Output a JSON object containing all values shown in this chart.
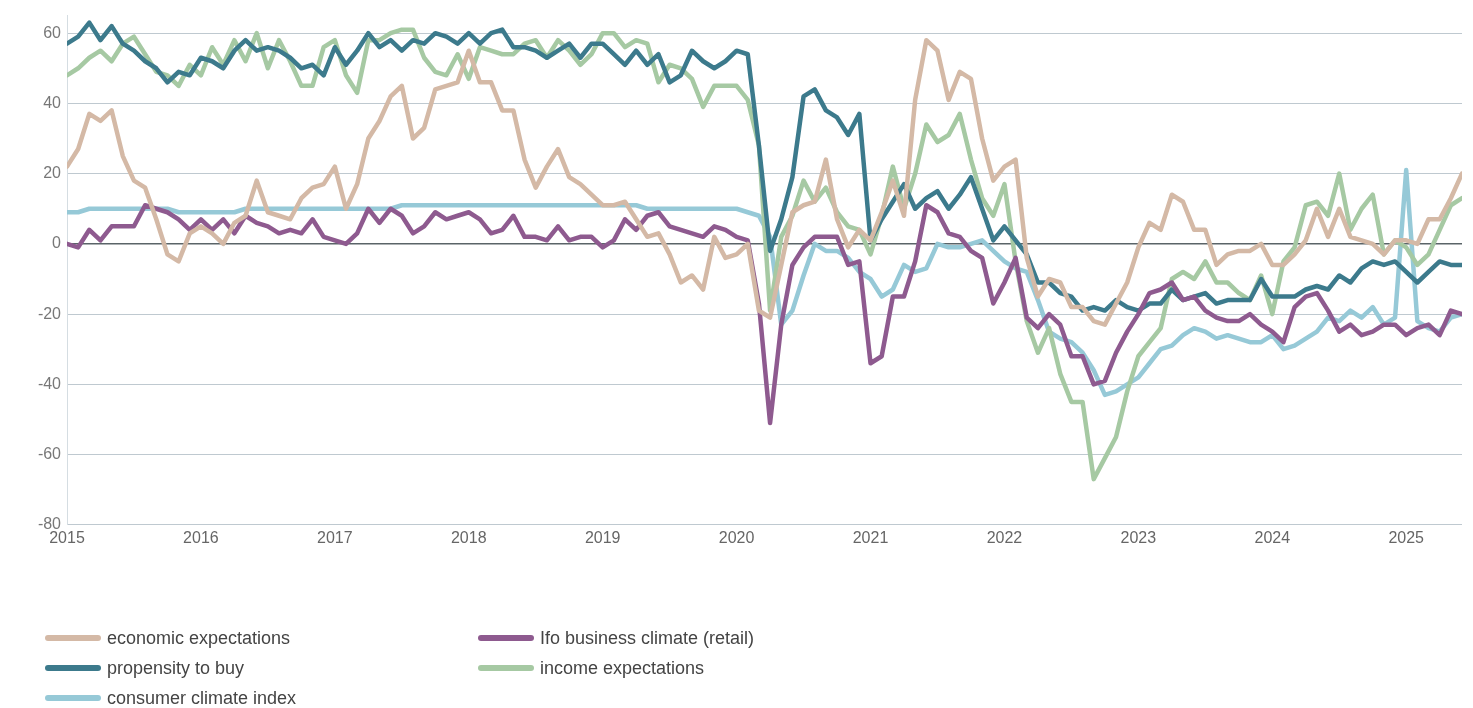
{
  "chart_data": {
    "type": "line",
    "x": [
      "2015-01",
      "2015-02",
      "2015-03",
      "2015-04",
      "2015-05",
      "2015-06",
      "2015-07",
      "2015-08",
      "2015-09",
      "2015-10",
      "2015-11",
      "2015-12",
      "2016-01",
      "2016-02",
      "2016-03",
      "2016-04",
      "2016-05",
      "2016-06",
      "2016-07",
      "2016-08",
      "2016-09",
      "2016-10",
      "2016-11",
      "2016-12",
      "2017-01",
      "2017-02",
      "2017-03",
      "2017-04",
      "2017-05",
      "2017-06",
      "2017-07",
      "2017-08",
      "2017-09",
      "2017-10",
      "2017-11",
      "2017-12",
      "2018-01",
      "2018-02",
      "2018-03",
      "2018-04",
      "2018-05",
      "2018-06",
      "2018-07",
      "2018-08",
      "2018-09",
      "2018-10",
      "2018-11",
      "2018-12",
      "2019-01",
      "2019-02",
      "2019-03",
      "2019-04",
      "2019-05",
      "2019-06",
      "2019-07",
      "2019-08",
      "2019-09",
      "2019-10",
      "2019-11",
      "2019-12",
      "2020-01",
      "2020-02",
      "2020-03",
      "2020-04",
      "2020-05",
      "2020-06",
      "2020-07",
      "2020-08",
      "2020-09",
      "2020-10",
      "2020-11",
      "2020-12",
      "2021-01",
      "2021-02",
      "2021-03",
      "2021-04",
      "2021-05",
      "2021-06",
      "2021-07",
      "2021-08",
      "2021-09",
      "2021-10",
      "2021-11",
      "2021-12",
      "2022-01",
      "2022-02",
      "2022-03",
      "2022-04",
      "2022-05",
      "2022-06",
      "2022-07",
      "2022-08",
      "2022-09",
      "2022-10",
      "2022-11",
      "2022-12",
      "2023-01",
      "2023-02",
      "2023-03",
      "2023-04",
      "2023-05",
      "2023-06",
      "2023-07",
      "2023-08",
      "2023-09",
      "2023-10",
      "2023-11",
      "2023-12",
      "2024-01",
      "2024-02",
      "2024-03",
      "2024-04",
      "2024-05",
      "2024-06",
      "2024-07",
      "2024-08",
      "2024-09",
      "2024-10",
      "2024-11",
      "2024-12",
      "2025-01",
      "2025-02",
      "2025-03",
      "2025-04",
      "2025-05",
      "2025-06"
    ],
    "series": [
      {
        "name": "economic expectations",
        "color": "#d4b9a6",
        "values": [
          22,
          27,
          37,
          35,
          38,
          25,
          18,
          16,
          7,
          -3,
          -5,
          3,
          5,
          3,
          0,
          6,
          8,
          18,
          9,
          8,
          7,
          13,
          16,
          17,
          22,
          10,
          17,
          30,
          35,
          42,
          45,
          30,
          33,
          44,
          45,
          46,
          55,
          46,
          46,
          38,
          38,
          24,
          16,
          22,
          27,
          19,
          17,
          14,
          11,
          11,
          12,
          7,
          2,
          3,
          -3,
          -11,
          -9,
          -13,
          2,
          -4,
          -3,
          0,
          -19,
          -21,
          -6,
          9,
          11,
          12,
          24,
          7,
          -1,
          4,
          1,
          9,
          18,
          8,
          41,
          58,
          55,
          41,
          49,
          47,
          30,
          18,
          22,
          24,
          -4,
          -15,
          -10,
          -11,
          -18,
          -18,
          -22,
          -23,
          -17,
          -11,
          -1,
          6,
          4,
          14,
          12,
          4,
          4,
          -6,
          -3,
          -2,
          -2,
          0,
          -6,
          -6,
          -3,
          1,
          10,
          2,
          10,
          2,
          1,
          0,
          -3,
          1,
          1,
          0,
          7,
          7,
          13,
          20
        ]
      },
      {
        "name": "Ifo business climate (retail)",
        "color": "#8e5a8f",
        "values": [
          0,
          -1,
          4,
          1,
          5,
          5,
          5,
          11,
          10,
          9,
          7,
          4,
          7,
          4,
          7,
          3,
          8,
          6,
          5,
          3,
          4,
          3,
          7,
          2,
          1,
          0,
          3,
          10,
          6,
          10,
          8,
          3,
          5,
          9,
          7,
          8,
          9,
          7,
          3,
          4,
          8,
          2,
          2,
          1,
          5,
          1,
          2,
          2,
          -1,
          1,
          7,
          4,
          8,
          9,
          5,
          4,
          3,
          2,
          5,
          4,
          2,
          1,
          -17,
          -51,
          -23,
          -6,
          -1,
          2,
          2,
          2,
          -6,
          -5,
          -34,
          -32,
          -15,
          -15,
          -5,
          11,
          9,
          3,
          2,
          -2,
          -4,
          -17,
          -11,
          -4,
          -21,
          -24,
          -20,
          -23,
          -32,
          -32,
          -40,
          -39,
          -31,
          -25,
          -20,
          -14,
          -13,
          -11,
          -16,
          -15,
          -19,
          -21,
          -22,
          -22,
          -20,
          -23,
          -25,
          -28,
          -18,
          -15,
          -14,
          -19,
          -25,
          -23,
          -26,
          -25,
          -23,
          -23,
          -26,
          -24,
          -23,
          -26,
          -19,
          -20
        ]
      },
      {
        "name": "propensity to buy",
        "color": "#3c7a8c",
        "values": [
          57,
          59,
          63,
          58,
          62,
          57,
          55,
          52,
          50,
          46,
          49,
          48,
          53,
          52,
          50,
          55,
          58,
          55,
          56,
          55,
          53,
          50,
          51,
          48,
          56,
          51,
          55,
          60,
          56,
          58,
          55,
          58,
          57,
          60,
          59,
          57,
          60,
          57,
          60,
          61,
          56,
          56,
          55,
          53,
          55,
          57,
          53,
          57,
          57,
          54,
          51,
          55,
          51,
          54,
          46,
          48,
          55,
          52,
          50,
          52,
          55,
          54,
          28,
          -2,
          7,
          19,
          42,
          44,
          38,
          36,
          31,
          37,
          1,
          7,
          12,
          17,
          10,
          13,
          15,
          10,
          14,
          19,
          10,
          1,
          5,
          1,
          -3,
          -11,
          -11,
          -14,
          -15,
          -19,
          -18,
          -19,
          -16,
          -18,
          -19,
          -17,
          -17,
          -13,
          -16,
          -15,
          -14,
          -17,
          -16,
          -16,
          -16,
          -10,
          -15,
          -15,
          -15,
          -13,
          -12,
          -13,
          -9,
          -11,
          -7,
          -5,
          -6,
          -5,
          -8,
          -11,
          -8,
          -5,
          -6,
          -6
        ]
      },
      {
        "name": "income expectations",
        "color": "#a6c9a3",
        "values": [
          48,
          50,
          53,
          55,
          52,
          57,
          59,
          54,
          49,
          48,
          45,
          51,
          48,
          56,
          51,
          58,
          52,
          60,
          50,
          58,
          52,
          45,
          45,
          56,
          58,
          48,
          43,
          58,
          58,
          60,
          61,
          61,
          53,
          49,
          48,
          54,
          47,
          56,
          55,
          54,
          54,
          57,
          58,
          53,
          58,
          55,
          51,
          54,
          60,
          60,
          56,
          58,
          57,
          46,
          51,
          50,
          47,
          39,
          45,
          45,
          45,
          41,
          28,
          -19,
          2,
          8,
          18,
          12,
          16,
          9,
          5,
          4,
          -3,
          8,
          22,
          10,
          20,
          34,
          29,
          31,
          37,
          24,
          13,
          8,
          17,
          -5,
          -22,
          -31,
          -24,
          -37,
          -45,
          -45,
          -67,
          -61,
          -55,
          -42,
          -32,
          -28,
          -24,
          -10,
          -8,
          -10,
          -5,
          -11,
          -11,
          -14,
          -16,
          -9,
          -20,
          -5,
          -1,
          11,
          12,
          8,
          20,
          4,
          10,
          14,
          -3,
          1,
          -1,
          -6,
          -3,
          4,
          11,
          13
        ]
      },
      {
        "name": "consumer climate index",
        "color": "#96c9d7",
        "values": [
          9,
          9,
          10,
          10,
          10,
          10,
          10,
          10,
          10,
          10,
          9,
          9,
          9,
          9,
          9,
          9,
          10,
          10,
          10,
          10,
          10,
          10,
          10,
          10,
          10,
          10,
          10,
          10,
          10,
          10,
          11,
          11,
          11,
          11,
          11,
          11,
          11,
          11,
          11,
          11,
          11,
          11,
          11,
          11,
          11,
          11,
          11,
          11,
          11,
          11,
          11,
          11,
          10,
          10,
          10,
          10,
          10,
          10,
          10,
          10,
          10,
          9,
          8,
          2,
          -23,
          -19,
          -9,
          0,
          -2,
          -2,
          -4,
          -8,
          -10,
          -15,
          -13,
          -6,
          -8,
          -7,
          0,
          -1,
          -1,
          0,
          1,
          -2,
          -5,
          -7,
          -8,
          -16,
          -25,
          -27,
          -28,
          -31,
          -36,
          -43,
          -42,
          -40,
          -38,
          -34,
          -30,
          -29,
          -26,
          -24,
          -25,
          -27,
          -26,
          -27,
          -28,
          -28,
          -26,
          -30,
          -29,
          -27,
          -25,
          -21,
          -22,
          -19,
          -21,
          -18,
          -23,
          -21,
          21,
          -22,
          -24,
          -25,
          -21,
          -20
        ]
      }
    ],
    "xlim": [
      "2015-01",
      "2025-06"
    ],
    "xticks": [
      "2015",
      "2016",
      "2017",
      "2018",
      "2019",
      "2020",
      "2021",
      "2022",
      "2023",
      "2024",
      "2025"
    ],
    "ylim": [
      -80,
      65
    ],
    "yticks": [
      -80,
      -60,
      -40,
      -20,
      0,
      20,
      40,
      60
    ],
    "grid": "y",
    "legend": "bottom",
    "marker": "none",
    "line_style": "solid"
  }
}
